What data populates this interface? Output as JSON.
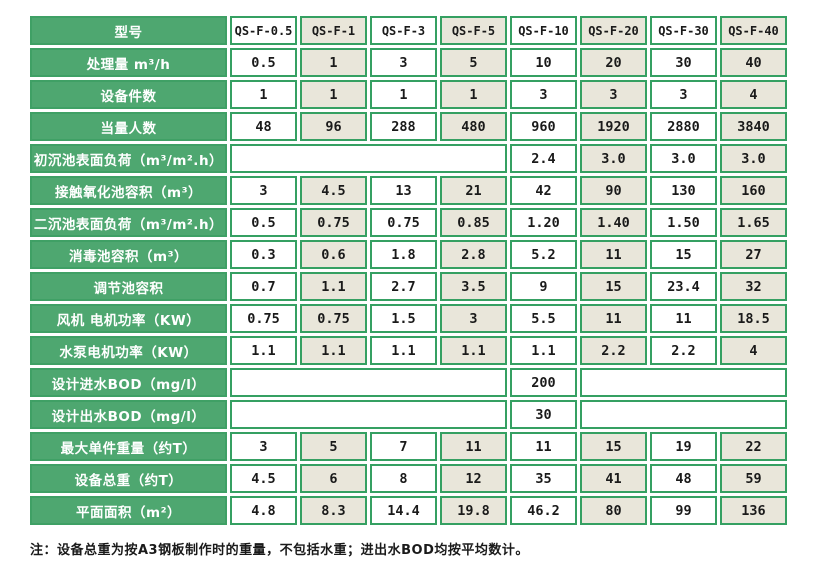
{
  "colors": {
    "label_green": "#4ea770",
    "grid_green": "#35a062",
    "cell_beige": "#e9e6da",
    "cell_white": "#ffffff",
    "label_text": "#ffffff",
    "value_text": "#1a1a1a"
  },
  "table": {
    "header": {
      "label": "型号",
      "models": [
        "QS-F-0.5",
        "QS-F-1",
        "QS-F-3",
        "QS-F-5",
        "QS-F-10",
        "QS-F-20",
        "QS-F-30",
        "QS-F-40"
      ]
    },
    "rows": [
      {
        "label": "处理量 m³/h",
        "values": [
          "0.5",
          "1",
          "3",
          "5",
          "10",
          "20",
          "30",
          "40"
        ]
      },
      {
        "label": "设备件数",
        "values": [
          "1",
          "1",
          "1",
          "1",
          "3",
          "3",
          "3",
          "4"
        ]
      },
      {
        "label": "当量人数",
        "values": [
          "48",
          "96",
          "288",
          "480",
          "960",
          "1920",
          "2880",
          "3840"
        ]
      },
      {
        "label": "初沉池表面负荷（m³/m².h）",
        "leading_empty_span": 4,
        "values": [
          "2.4",
          "3.0",
          "3.0",
          "3.0"
        ]
      },
      {
        "label": "接触氧化池容积（m³）",
        "values": [
          "3",
          "4.5",
          "13",
          "21",
          "42",
          "90",
          "130",
          "160"
        ]
      },
      {
        "label": "二沉池表面负荷（m³/m².h）",
        "values": [
          "0.5",
          "0.75",
          "0.75",
          "0.85",
          "1.20",
          "1.40",
          "1.50",
          "1.65"
        ]
      },
      {
        "label": "消毒池容积（m³）",
        "values": [
          "0.3",
          "0.6",
          "1.8",
          "2.8",
          "5.2",
          "11",
          "15",
          "27"
        ]
      },
      {
        "label": "调节池容积",
        "values": [
          "0.7",
          "1.1",
          "2.7",
          "3.5",
          "9",
          "15",
          "23.4",
          "32"
        ]
      },
      {
        "label": "风机 电机功率（KW）",
        "values": [
          "0.75",
          "0.75",
          "1.5",
          "3",
          "5.5",
          "11",
          "11",
          "18.5"
        ]
      },
      {
        "label": "水泵电机功率（KW）",
        "values": [
          "1.1",
          "1.1",
          "1.1",
          "1.1",
          "1.1",
          "2.2",
          "2.2",
          "4"
        ]
      },
      {
        "label": "设计进水BOD（mg/l）",
        "leading_empty_span": 4,
        "value": "200",
        "trailing_empty_span": 3
      },
      {
        "label": "设计出水BOD（mg/l）",
        "leading_empty_span": 4,
        "value": "30",
        "trailing_empty_span": 3
      },
      {
        "label": "最大单件重量（约T）",
        "values": [
          "3",
          "5",
          "7",
          "11",
          "11",
          "15",
          "19",
          "22"
        ]
      },
      {
        "label": "设备总重（约T）",
        "values": [
          "4.5",
          "6",
          "8",
          "12",
          "35",
          "41",
          "48",
          "59"
        ]
      },
      {
        "label": "平面面积（m²）",
        "values": [
          "4.8",
          "8.3",
          "14.4",
          "19.8",
          "46.2",
          "80",
          "99",
          "136"
        ]
      }
    ]
  },
  "note": "注：设备总重为按A3钢板制作时的重量，不包括水重；进出水BOD均按平均数计。"
}
